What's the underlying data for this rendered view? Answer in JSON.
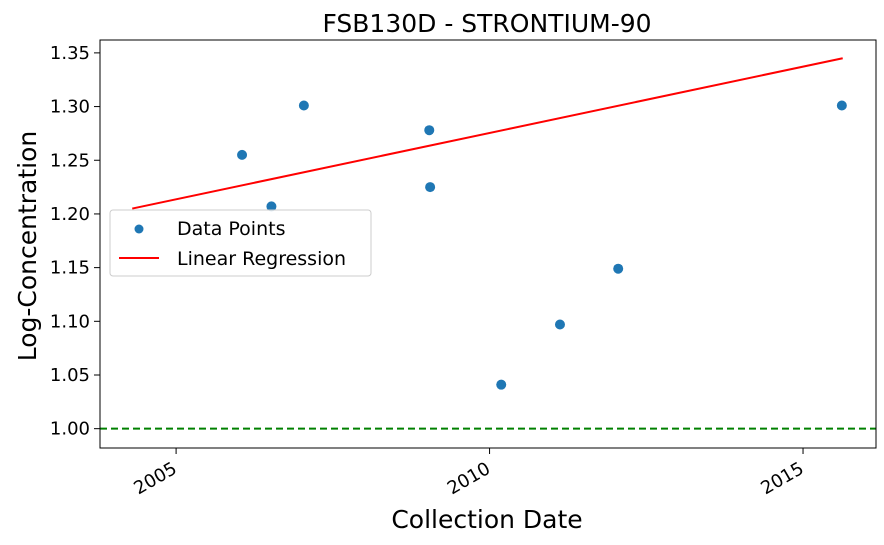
{
  "chart_data": {
    "type": "scatter",
    "title": "FSB130D - STRONTIUM-90",
    "xlabel": "Collection Date",
    "ylabel": "Log-Concentration",
    "xlim": [
      "2003-10-15",
      "2016-03-01"
    ],
    "ylim": [
      0.982,
      1.362
    ],
    "x_ticks": [
      "2005",
      "2010",
      "2015"
    ],
    "y_ticks": [
      "1.00",
      "1.05",
      "1.10",
      "1.15",
      "1.20",
      "1.25",
      "1.30",
      "1.35"
    ],
    "series": [
      {
        "name": "Data Points",
        "type": "scatter",
        "color": "#1f77b4",
        "points": [
          {
            "x": "2006-01-20",
            "y": 1.255
          },
          {
            "x": "2006-07-10",
            "y": 1.207
          },
          {
            "x": "2007-01-15",
            "y": 1.301
          },
          {
            "x": "2009-01-15",
            "y": 1.278
          },
          {
            "x": "2009-01-20",
            "y": 1.225
          },
          {
            "x": "2010-03-10",
            "y": 1.041
          },
          {
            "x": "2011-02-15",
            "y": 1.097
          },
          {
            "x": "2012-01-20",
            "y": 1.149
          },
          {
            "x": "2015-08-15",
            "y": 1.301
          }
        ]
      },
      {
        "name": "Linear Regression",
        "type": "line",
        "color": "#ff0000",
        "points": [
          {
            "x": "2004-04-20",
            "y": 1.205
          },
          {
            "x": "2015-08-20",
            "y": 1.345
          }
        ]
      }
    ],
    "reference_line": {
      "y": 1.0,
      "color": "#008000",
      "style": "dashed"
    },
    "legend": {
      "placement": "center-left"
    },
    "grid": false
  }
}
